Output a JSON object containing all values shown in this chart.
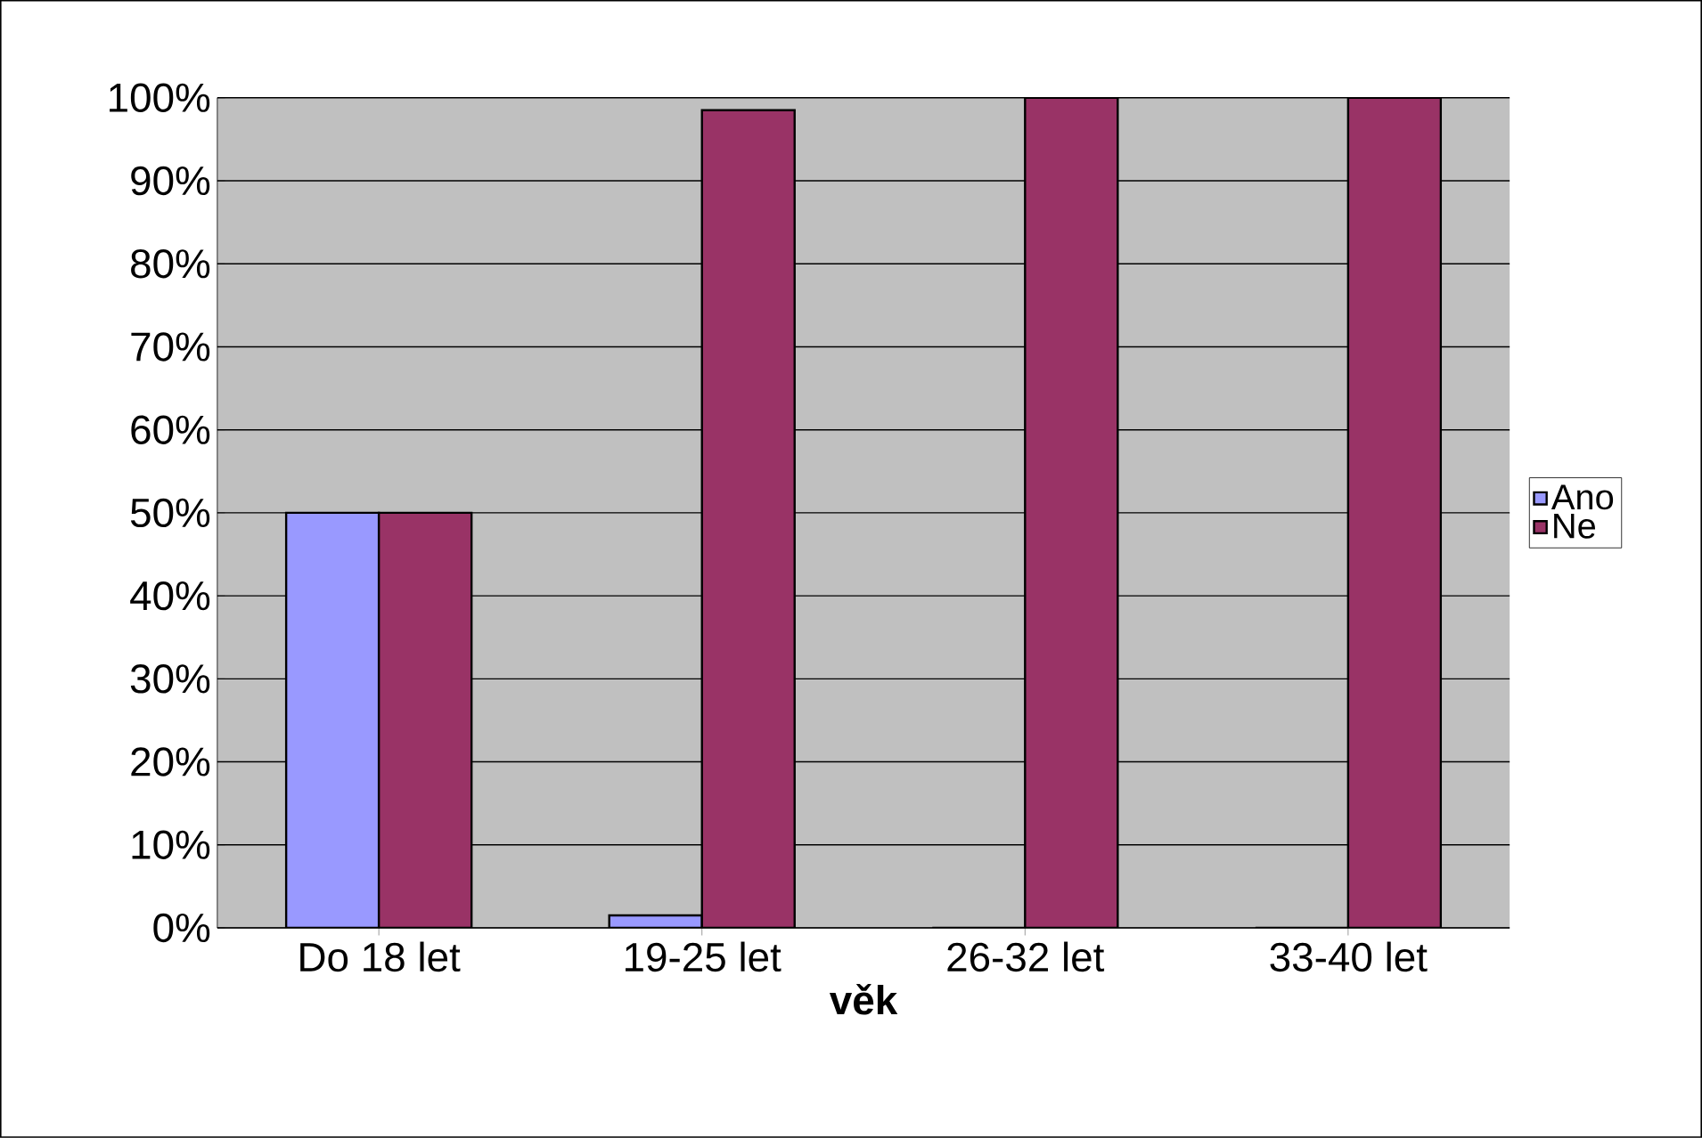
{
  "chart_data": {
    "type": "bar",
    "xlabel": "věk",
    "categories": [
      "Do 18 let",
      "19-25 let",
      "26-32 let",
      "33-40 let"
    ],
    "series": [
      {
        "name": "Ano",
        "color": "#9999ff",
        "values": [
          50,
          1.5,
          0,
          0
        ]
      },
      {
        "name": "Ne",
        "color": "#993366",
        "values": [
          50,
          98.5,
          100,
          100
        ]
      }
    ],
    "ylim": [
      0,
      100
    ],
    "yticks": [
      {
        "value": 0,
        "label": "0%"
      },
      {
        "value": 10,
        "label": "10%"
      },
      {
        "value": 20,
        "label": "20%"
      },
      {
        "value": 30,
        "label": "30%"
      },
      {
        "value": 40,
        "label": "40%"
      },
      {
        "value": 50,
        "label": "50%"
      },
      {
        "value": 60,
        "label": "60%"
      },
      {
        "value": 70,
        "label": "70%"
      },
      {
        "value": 80,
        "label": "80%"
      },
      {
        "value": 90,
        "label": "90%"
      },
      {
        "value": 100,
        "label": "100%"
      }
    ],
    "grid": "y",
    "legend": "right"
  }
}
